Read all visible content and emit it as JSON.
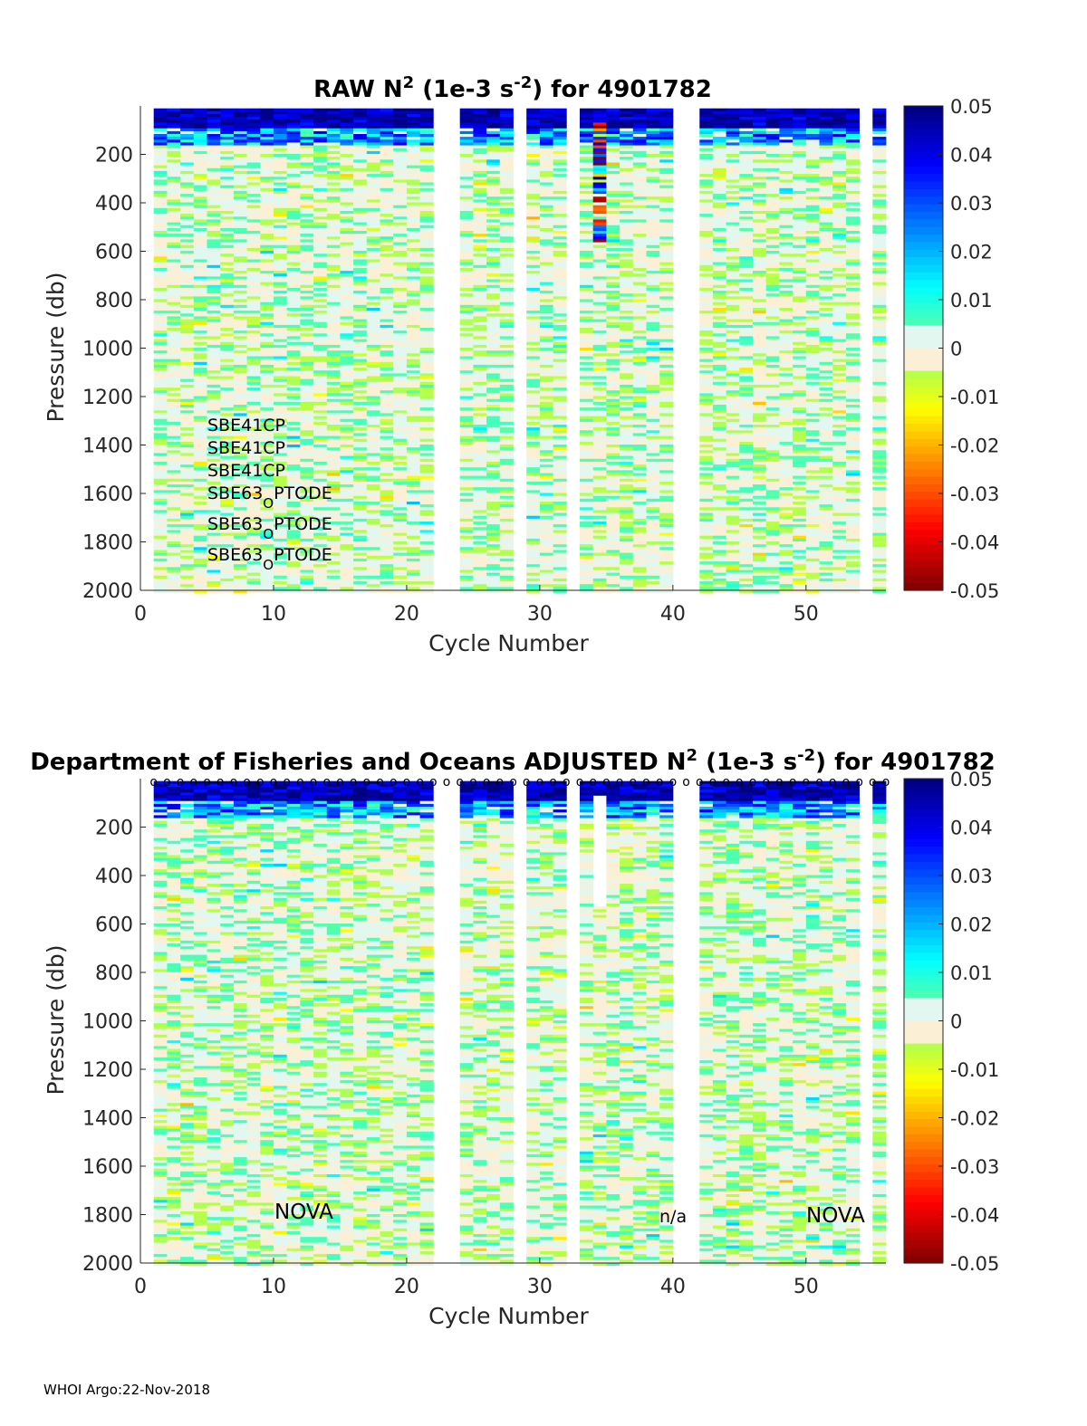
{
  "chart_data": [
    {
      "type": "heatmap",
      "title_parts": [
        "RAW N",
        "2",
        " (1e-3 s",
        "-2",
        ") for 4901782"
      ],
      "xlabel": "Cycle Number",
      "ylabel": "Pressure (db)",
      "xlim": [
        0,
        56
      ],
      "ylim": [
        2000,
        0
      ],
      "xticks": [
        "0",
        "10",
        "20",
        "30",
        "40",
        "50"
      ],
      "yticks": [
        "200",
        "400",
        "600",
        "800",
        "1000",
        "1200",
        "1400",
        "1600",
        "1800",
        "2000"
      ],
      "colorbar": {
        "range": [
          -0.05,
          0.05
        ],
        "ticks": [
          "0.05",
          "0.04",
          "0.03",
          "0.02",
          "0.01",
          "0",
          "-0.01",
          "-0.02",
          "-0.03",
          "-0.04",
          "-0.05"
        ]
      },
      "missing_cycles": [
        22,
        23,
        28,
        32,
        40,
        41,
        54
      ],
      "annotations": [
        {
          "text": "SBE41CP"
        },
        {
          "text": "SBE41CP"
        },
        {
          "text": "SBE41CP"
        },
        {
          "text": "SBE63",
          "sub": "O",
          "rest": "PTODE"
        },
        {
          "text": "SBE63",
          "sub": "O",
          "rest": "PTODE"
        },
        {
          "text": "SBE63",
          "sub": "O",
          "rest": "PTODE"
        }
      ]
    },
    {
      "type": "heatmap",
      "title_parts": [
        "Department of Fisheries and Oceans  ADJUSTED N",
        "2",
        " (1e-3 s",
        "-2",
        ") for 4901782"
      ],
      "xlabel": "Cycle Number",
      "ylabel": "Pressure (db)",
      "xlim": [
        0,
        56
      ],
      "ylim": [
        2000,
        0
      ],
      "xticks": [
        "0",
        "10",
        "20",
        "30",
        "40",
        "50"
      ],
      "yticks": [
        "200",
        "400",
        "600",
        "800",
        "1000",
        "1200",
        "1400",
        "1600",
        "1800",
        "2000"
      ],
      "colorbar": {
        "range": [
          -0.05,
          0.05
        ],
        "ticks": [
          "0.05",
          "0.04",
          "0.03",
          "0.02",
          "0.01",
          "0",
          "-0.01",
          "-0.02",
          "-0.03",
          "-0.04",
          "-0.05"
        ]
      },
      "missing_cycles": [
        22,
        23,
        28,
        32,
        40,
        41,
        54
      ],
      "qc_marker": "o",
      "annotations": [
        {
          "text": "NOVA"
        },
        {
          "text": "n/a"
        },
        {
          "text": "NOVA"
        }
      ]
    }
  ],
  "footer": "WHOI Argo:22-Nov-2018"
}
